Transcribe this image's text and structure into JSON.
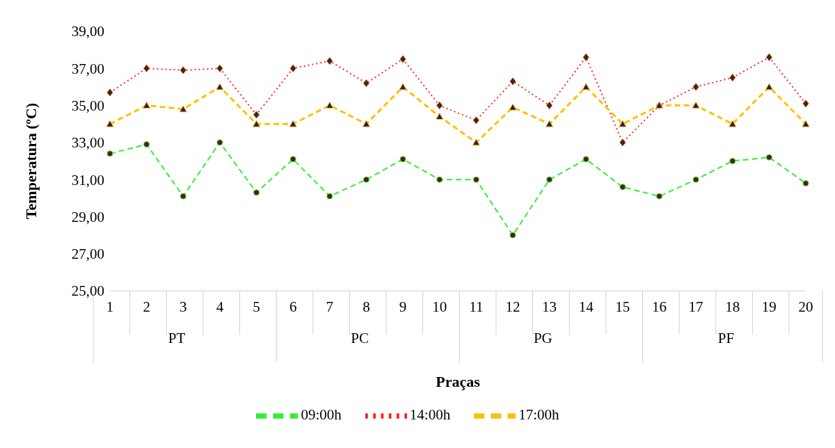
{
  "chart_data": {
    "type": "line",
    "xlabel": "Praças",
    "ylabel": "Temperatura  (ºC)",
    "categories": [
      "1",
      "2",
      "3",
      "4",
      "5",
      "6",
      "7",
      "8",
      "9",
      "10",
      "11",
      "12",
      "13",
      "14",
      "15",
      "16",
      "17",
      "18",
      "19",
      "20"
    ],
    "annotations": [
      "PT",
      "PC",
      "PG",
      "PF"
    ],
    "series": [
      {
        "name": "09:00h",
        "color": "#33ee33",
        "line_style": "dashed",
        "marker": "circle",
        "values": [
          32.4,
          32.9,
          30.1,
          33.0,
          30.3,
          32.1,
          30.1,
          31.0,
          32.1,
          31.0,
          31.0,
          28.0,
          31.0,
          32.1,
          30.6,
          30.1,
          31.0,
          32.0,
          32.2,
          30.8
        ]
      },
      {
        "name": "14:00h",
        "color": "#ff2222",
        "line_style": "dotted",
        "marker": "diamond",
        "values": [
          35.7,
          37.0,
          36.9,
          37.0,
          34.5,
          37.0,
          37.4,
          36.2,
          37.5,
          35.0,
          34.2,
          36.3,
          35.0,
          37.6,
          33.0,
          35.0,
          36.0,
          36.5,
          37.6,
          35.1
        ]
      },
      {
        "name": "17:00h",
        "color": "#ffc000",
        "line_style": "dashed",
        "marker": "triangle",
        "values": [
          34.0,
          35.0,
          34.8,
          36.0,
          34.0,
          34.0,
          35.0,
          34.0,
          36.0,
          34.4,
          33.0,
          34.9,
          34.0,
          36.0,
          34.0,
          35.0,
          35.0,
          34.0,
          36.0,
          34.0
        ]
      }
    ],
    "ylim": [
      25,
      39
    ],
    "yticks": [
      {
        "value": 25,
        "label": "25,00"
      },
      {
        "value": 27,
        "label": "27,00"
      },
      {
        "value": 29,
        "label": "29,00"
      },
      {
        "value": 31,
        "label": "31,00"
      },
      {
        "value": 33,
        "label": "33,00"
      },
      {
        "value": 35,
        "label": "35,00"
      },
      {
        "value": 37,
        "label": "37,00"
      },
      {
        "value": 39,
        "label": "39,00"
      }
    ],
    "grid": false,
    "legend": "bottom"
  }
}
